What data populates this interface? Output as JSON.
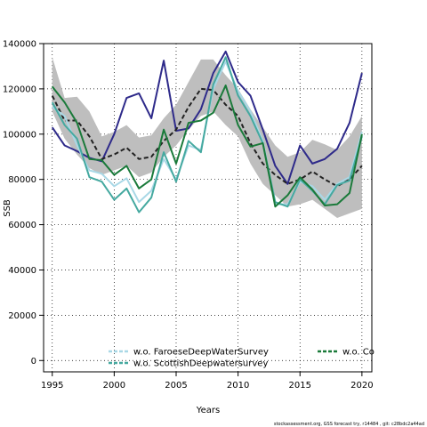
{
  "chart_data": {
    "type": "line",
    "xlabel": "Years",
    "ylabel": "SSB",
    "xlim": [
      1994.3,
      2020.8
    ],
    "ylim": [
      -5000,
      140000
    ],
    "xticks": [
      1995,
      2000,
      2005,
      2010,
      2015,
      2020
    ],
    "yticks": [
      0,
      20000,
      40000,
      60000,
      80000,
      100000,
      120000,
      140000
    ],
    "grid": "dotted",
    "x": [
      1995,
      1996,
      1997,
      1998,
      1999,
      2000,
      2001,
      2002,
      2003,
      2004,
      2005,
      2006,
      2007,
      2008,
      2009,
      2010,
      2011,
      2012,
      2013,
      2014,
      2015,
      2016,
      2017,
      2018,
      2019,
      2020
    ],
    "band": {
      "color": "#bebebe",
      "upper": [
        134000,
        116000,
        116500,
        110000,
        99000,
        101000,
        104000,
        98500,
        99500,
        107000,
        113000,
        123000,
        133000,
        133000,
        126000,
        120000,
        111000,
        103000,
        95000,
        90000,
        92000,
        97500,
        95500,
        93000,
        99000,
        108000
      ],
      "lower": [
        110000,
        98000,
        91000,
        85000,
        82000,
        84000,
        86000,
        81000,
        83000,
        90000,
        95000,
        102000,
        108000,
        110000,
        104000,
        99000,
        87000,
        78000,
        73000,
        68000,
        69000,
        71000,
        67000,
        63000,
        65000,
        67000
      ]
    },
    "series": [
      {
        "name": "",
        "color": "#2e2a8a",
        "style": "solid",
        "values": [
          103000,
          95000,
          92500,
          89500,
          88000,
          100000,
          116000,
          118000,
          107000,
          132500,
          101500,
          102500,
          111000,
          127000,
          136500,
          123000,
          117000,
          102000,
          86000,
          78000,
          95000,
          87000,
          89000,
          93500,
          105000,
          127000
        ]
      },
      {
        "name": "",
        "color": "#222222",
        "style": "dashed",
        "values": [
          117000,
          106000,
          106000,
          99000,
          89000,
          91000,
          94000,
          89000,
          90000,
          97000,
          102000,
          112000,
          120000,
          119500,
          113000,
          108000,
          96000,
          87000,
          82000,
          78000,
          80000,
          83500,
          80000,
          77000,
          80000,
          86000
        ]
      },
      {
        "name": "w.o. FaroeseDeepWaterSurvey",
        "color": "#a9d8e6",
        "style": "solid",
        "values": [
          112000,
          108000,
          95000,
          84000,
          82500,
          77000,
          80500,
          70000,
          75000,
          89000,
          80000,
          95000,
          93000,
          120000,
          132000,
          119000,
          110000,
          97000,
          69000,
          69000,
          79000,
          77000,
          71000,
          78000,
          81000,
          101000
        ]
      },
      {
        "name": "w.o. ScottishDeepwatersurvey",
        "color": "#45a9a0",
        "style": "solid",
        "values": [
          114000,
          104000,
          98000,
          81000,
          79000,
          71000,
          76000,
          65500,
          72000,
          92000,
          79000,
          97000,
          92000,
          122000,
          134000,
          117000,
          108000,
          96000,
          70000,
          68000,
          80000,
          75000,
          69000,
          77500,
          79500,
          99000
        ]
      },
      {
        "name": "w.o. Co",
        "color": "#1a7a3a",
        "style": "solid",
        "values": [
          121000,
          114000,
          105000,
          89000,
          88500,
          82000,
          86000,
          76000,
          80000,
          102000,
          87000,
          105000,
          106000,
          109500,
          121500,
          104000,
          94500,
          96000,
          68000,
          73000,
          81000,
          75500,
          68500,
          69000,
          74000,
          100000
        ]
      }
    ]
  },
  "footer": "stockassessment.org, GSS forecast try, r14484 ,  git: c28bdc2a44ad"
}
